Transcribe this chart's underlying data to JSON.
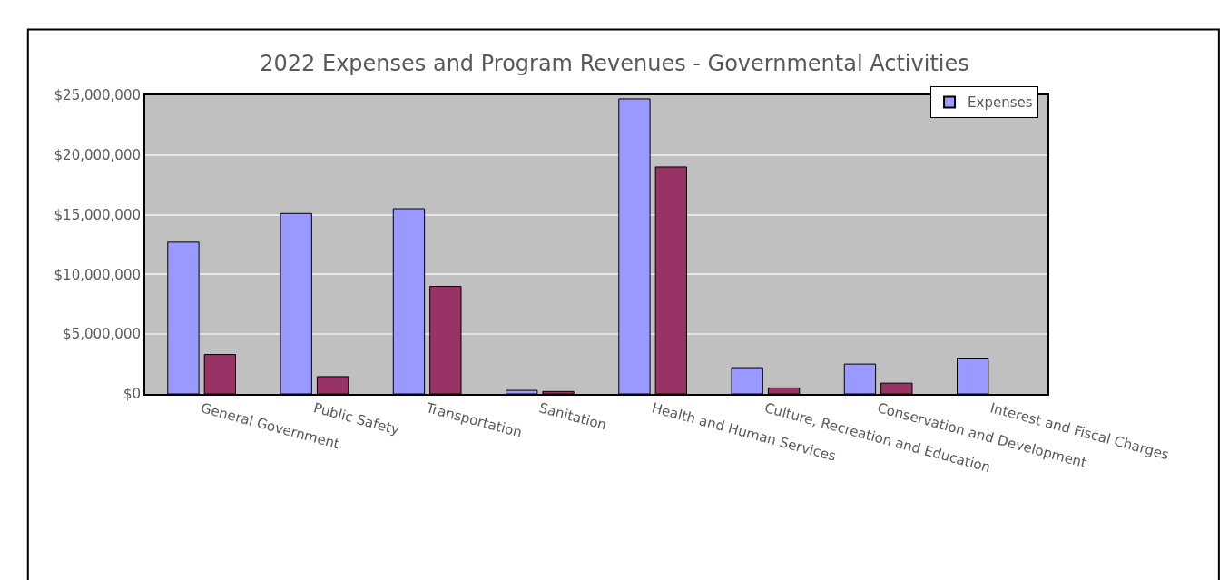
{
  "chart_data": {
    "type": "bar",
    "title": "2022 Expenses and Program Revenues - Governmental Activities",
    "categories": [
      "General Government",
      "Public Safety",
      "Transportation",
      "Sanitation",
      "Health and Human Services",
      "Culture, Recreation and Education",
      "Conservation and Development",
      "Interest and Fiscal Charges"
    ],
    "series": [
      {
        "name": "Expenses",
        "color": "#9999ff",
        "values": [
          12700000,
          15100000,
          15500000,
          300000,
          24700000,
          2200000,
          2500000,
          3000000
        ]
      },
      {
        "color": "#993366",
        "values": [
          3300000,
          1450000,
          9000000,
          200000,
          19000000,
          500000,
          900000,
          null
        ]
      }
    ],
    "ylim": [
      0,
      25000000
    ],
    "yticks": [
      {
        "value": 0,
        "label": "$0"
      },
      {
        "value": 5000000,
        "label": "$5,000,000"
      },
      {
        "value": 10000000,
        "label": "$10,000,000"
      },
      {
        "value": 15000000,
        "label": "$15,000,000"
      },
      {
        "value": 20000000,
        "label": "$20,000,000"
      },
      {
        "value": 25000000,
        "label": "$25,000,000"
      }
    ],
    "grid": "y",
    "legend": "top right"
  }
}
